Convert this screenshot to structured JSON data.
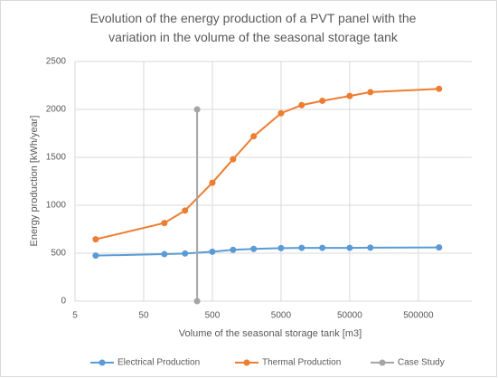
{
  "chart_data": {
    "type": "line",
    "title": "Evolution of the energy production of a PVT panel with the variation in the volume of the seasonal storage tank",
    "x_label": "Volume of the seasonal storage tank [m3]",
    "y_label": "Energy production [kWh/year]",
    "x_log": true,
    "xlim": [
      5,
      3000000
    ],
    "xticks": [
      5,
      50,
      500,
      5000,
      50000,
      500000
    ],
    "ylim": [
      0,
      2500
    ],
    "yticks": [
      0,
      500,
      1000,
      1500,
      2000,
      2500
    ],
    "grid": true,
    "legend": "bottom",
    "series": [
      {
        "name": "Electrical Production",
        "color": "#5b9bd5",
        "x": [
          10,
          100,
          200,
          500,
          1000,
          2000,
          5000,
          10000,
          20000,
          50000,
          100000,
          1000000
        ],
        "values": [
          475,
          490,
          497,
          515,
          535,
          545,
          553,
          556,
          556,
          556,
          558,
          560
        ]
      },
      {
        "name": "Thermal Production",
        "color": "#ed7d31",
        "x": [
          10,
          100,
          200,
          500,
          1000,
          2000,
          5000,
          10000,
          20000,
          50000,
          100000,
          1000000
        ],
        "values": [
          645,
          815,
          945,
          1235,
          1480,
          1720,
          1960,
          2045,
          2090,
          2140,
          2180,
          2215
        ]
      },
      {
        "name": "Case Study",
        "color": "#a5a5a5",
        "x": [
          300,
          300
        ],
        "values": [
          0,
          2000
        ]
      }
    ]
  }
}
